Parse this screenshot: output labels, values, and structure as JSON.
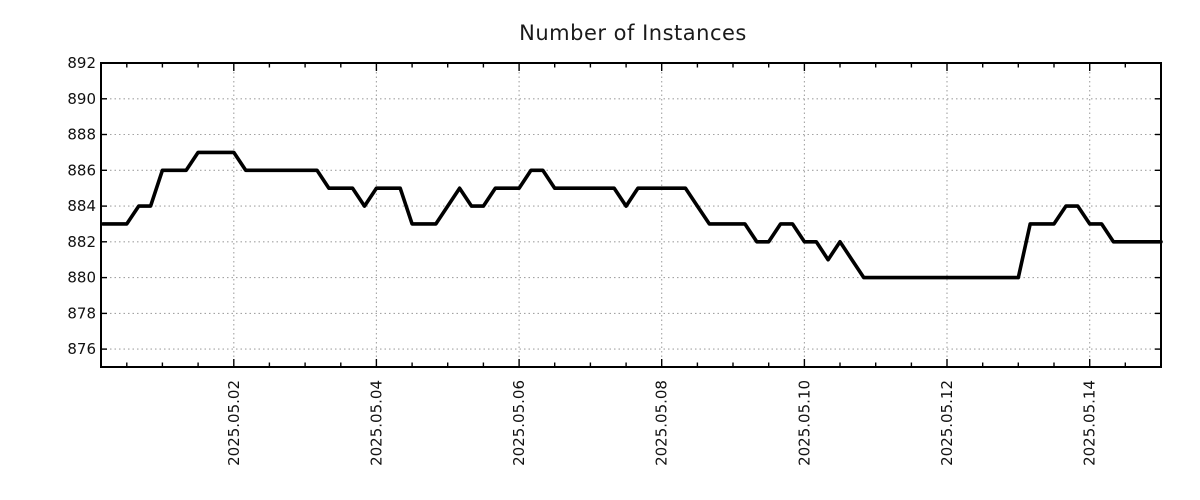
{
  "chart_data": {
    "type": "line",
    "title": "Number of Instances",
    "xlabel": "",
    "ylabel": "",
    "ylim": [
      875,
      892
    ],
    "y_ticks": [
      876,
      878,
      880,
      882,
      884,
      886,
      888,
      890,
      892
    ],
    "x_start": "2025-04-30 04:00",
    "x_end": "2025-05-15 00:00",
    "x_span_hours": 356,
    "x_minor_tick_interval_hours": 12,
    "x_ticks": [
      {
        "label": "2025.05.02",
        "hours": 44
      },
      {
        "label": "2025.05.04",
        "hours": 92
      },
      {
        "label": "2025.05.06",
        "hours": 140
      },
      {
        "label": "2025.05.08",
        "hours": 188
      },
      {
        "label": "2025.05.10",
        "hours": 236
      },
      {
        "label": "2025.05.12",
        "hours": 284
      },
      {
        "label": "2025.05.14",
        "hours": 332
      }
    ],
    "grid": true,
    "legend": "none",
    "line_color": "#000000",
    "grid_color": "#a3a3a3",
    "background": "#ffffff",
    "series": [
      {
        "name": "instances",
        "start": "2025-04-30 04:00",
        "interval_hours": 4,
        "values": [
          883,
          883,
          883,
          884,
          884,
          886,
          886,
          886,
          887,
          887,
          887,
          887,
          886,
          886,
          886,
          886,
          886,
          886,
          886,
          885,
          885,
          885,
          884,
          885,
          885,
          885,
          883,
          883,
          883,
          884,
          885,
          884,
          884,
          885,
          885,
          885,
          886,
          886,
          885,
          885,
          885,
          885,
          885,
          885,
          884,
          885,
          885,
          885,
          885,
          885,
          884,
          883,
          883,
          883,
          883,
          882,
          882,
          883,
          883,
          882,
          882,
          881,
          882,
          881,
          880,
          880,
          880,
          880,
          880,
          880,
          880,
          880,
          880,
          880,
          880,
          880,
          880,
          880,
          883,
          883,
          883,
          884,
          884,
          883,
          883,
          882,
          882,
          882,
          882,
          882
        ]
      }
    ]
  }
}
